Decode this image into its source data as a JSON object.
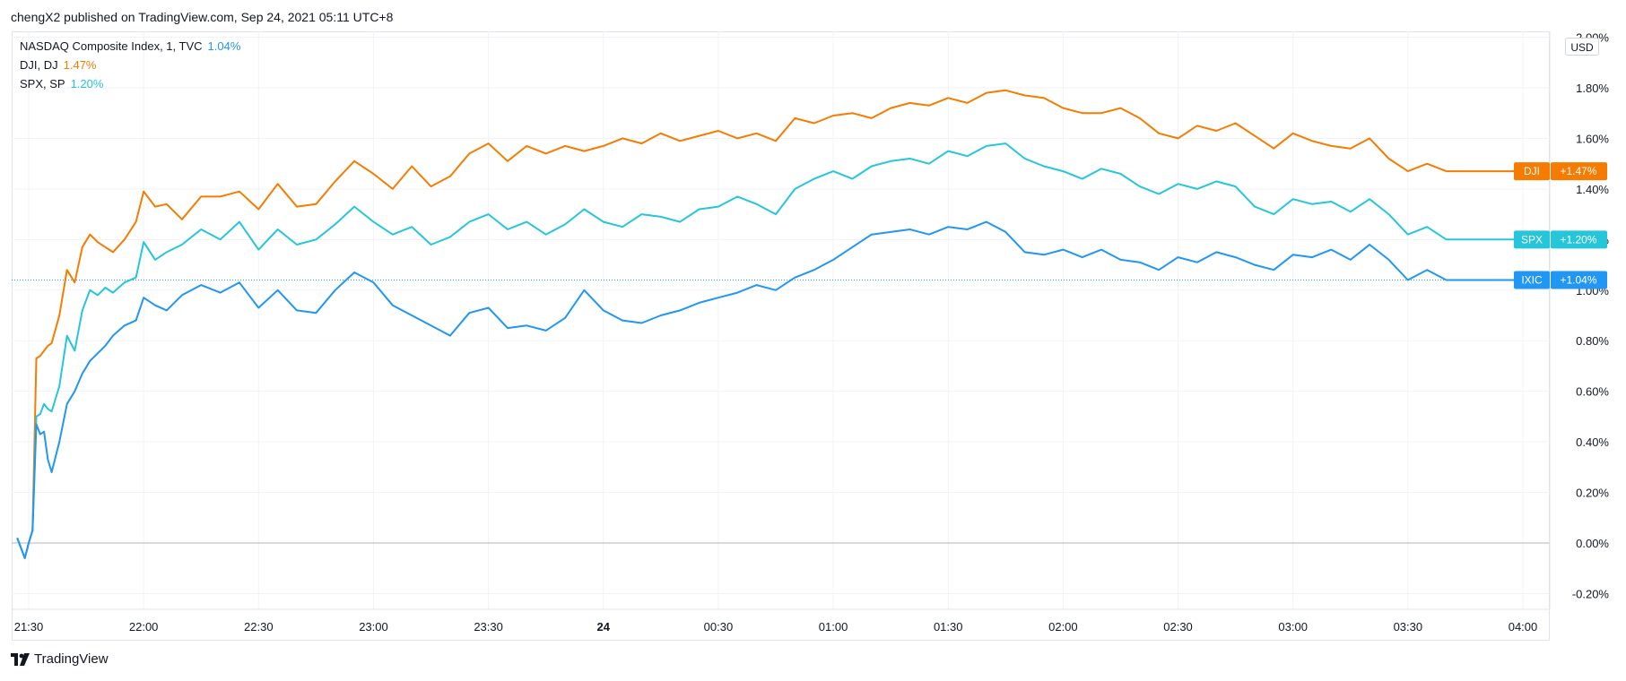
{
  "header": {
    "attribution": "chengX2 published on TradingView.com, Sep 24, 2021 05:11 UTC+8"
  },
  "legend": [
    {
      "name": "NASDAQ Composite Index, 1, TVC",
      "value": "1.04%",
      "color": "#2196f3"
    },
    {
      "name": "DJI, DJ",
      "value": "1.47%",
      "color": "#f57c00"
    },
    {
      "name": "SPX, SP",
      "value": "1.20%",
      "color": "#26c6da"
    }
  ],
  "currency_label": "USD",
  "footer": {
    "brand": "TradingView"
  },
  "chart_data": {
    "type": "line",
    "x_ticks": [
      "21:30",
      "22:00",
      "22:30",
      "23:00",
      "23:30",
      "24",
      "00:30",
      "01:00",
      "01:30",
      "02:00",
      "02:30",
      "03:00",
      "03:30",
      "04:00"
    ],
    "x_ticks_bold": [
      "24"
    ],
    "y_ticks": [
      "2.00%",
      "1.80%",
      "1.60%",
      "1.40%",
      "1.20%",
      "1.00%",
      "0.80%",
      "0.60%",
      "0.40%",
      "0.20%",
      "0.00%",
      "-0.20%"
    ],
    "y_tick_values": [
      2.0,
      1.8,
      1.6,
      1.4,
      1.2,
      1.0,
      0.8,
      0.6,
      0.4,
      0.2,
      0.0,
      -0.2
    ],
    "ylim": [
      -0.25,
      2.0
    ],
    "x_range_minutes": [
      -4,
      390
    ],
    "grid": true,
    "zero_line": 0.0,
    "series": [
      {
        "name": "DJI",
        "color": "#f57c00",
        "tag_value": "+1.47%",
        "last": 1.47,
        "x": [
          -3,
          -1,
          0,
          1,
          2,
          3,
          4,
          5,
          6,
          8,
          10,
          12,
          14,
          16,
          18,
          20,
          22,
          25,
          28,
          30,
          33,
          36,
          40,
          45,
          50,
          55,
          60,
          65,
          70,
          75,
          80,
          85,
          90,
          95,
          100,
          105,
          110,
          115,
          120,
          125,
          130,
          135,
          140,
          145,
          150,
          155,
          160,
          165,
          170,
          175,
          180,
          185,
          190,
          195,
          200,
          205,
          210,
          215,
          220,
          225,
          230,
          235,
          240,
          245,
          250,
          255,
          260,
          265,
          270,
          275,
          280,
          285,
          290,
          295,
          300,
          305,
          310,
          315,
          320,
          325,
          330,
          335,
          340,
          345,
          350,
          355,
          360,
          365,
          370,
          375,
          380,
          385,
          388,
          390
        ],
        "y": [
          0.02,
          -0.06,
          0.0,
          0.05,
          0.73,
          0.74,
          0.76,
          0.78,
          0.79,
          0.9,
          1.08,
          1.03,
          1.17,
          1.22,
          1.19,
          1.17,
          1.15,
          1.2,
          1.27,
          1.39,
          1.33,
          1.34,
          1.28,
          1.37,
          1.37,
          1.39,
          1.32,
          1.42,
          1.33,
          1.34,
          1.43,
          1.51,
          1.46,
          1.4,
          1.49,
          1.41,
          1.45,
          1.54,
          1.58,
          1.51,
          1.57,
          1.54,
          1.57,
          1.55,
          1.57,
          1.6,
          1.58,
          1.62,
          1.59,
          1.61,
          1.63,
          1.6,
          1.62,
          1.59,
          1.68,
          1.66,
          1.69,
          1.7,
          1.68,
          1.72,
          1.74,
          1.73,
          1.76,
          1.74,
          1.78,
          1.79,
          1.77,
          1.76,
          1.72,
          1.7,
          1.7,
          1.72,
          1.68,
          1.62,
          1.6,
          1.65,
          1.63,
          1.66,
          1.61,
          1.56,
          1.62,
          1.59,
          1.57,
          1.56,
          1.6,
          1.52,
          1.47,
          1.5,
          1.47,
          1.47,
          1.47,
          1.47,
          1.47,
          1.47
        ]
      },
      {
        "name": "SPX",
        "color": "#26c6da",
        "tag_value": "+1.20%",
        "last": 1.2,
        "x": [
          -3,
          -1,
          0,
          1,
          2,
          3,
          4,
          5,
          6,
          8,
          10,
          12,
          14,
          16,
          18,
          20,
          22,
          25,
          28,
          30,
          33,
          36,
          40,
          45,
          50,
          55,
          60,
          65,
          70,
          75,
          80,
          85,
          90,
          95,
          100,
          105,
          110,
          115,
          120,
          125,
          130,
          135,
          140,
          145,
          150,
          155,
          160,
          165,
          170,
          175,
          180,
          185,
          190,
          195,
          200,
          205,
          210,
          215,
          220,
          225,
          230,
          235,
          240,
          245,
          250,
          255,
          260,
          265,
          270,
          275,
          280,
          285,
          290,
          295,
          300,
          305,
          310,
          315,
          320,
          325,
          330,
          335,
          340,
          345,
          350,
          355,
          360,
          365,
          370,
          375,
          380,
          385,
          388,
          390
        ],
        "y": [
          0.02,
          -0.06,
          0.0,
          0.05,
          0.5,
          0.51,
          0.55,
          0.53,
          0.52,
          0.62,
          0.82,
          0.76,
          0.92,
          1.0,
          0.98,
          1.01,
          0.99,
          1.03,
          1.05,
          1.19,
          1.12,
          1.15,
          1.18,
          1.24,
          1.2,
          1.27,
          1.16,
          1.24,
          1.18,
          1.2,
          1.26,
          1.33,
          1.27,
          1.22,
          1.25,
          1.18,
          1.21,
          1.27,
          1.3,
          1.24,
          1.27,
          1.22,
          1.26,
          1.32,
          1.27,
          1.25,
          1.3,
          1.29,
          1.27,
          1.32,
          1.33,
          1.37,
          1.34,
          1.3,
          1.4,
          1.44,
          1.47,
          1.44,
          1.49,
          1.51,
          1.52,
          1.5,
          1.55,
          1.53,
          1.57,
          1.58,
          1.52,
          1.49,
          1.47,
          1.44,
          1.48,
          1.46,
          1.41,
          1.38,
          1.42,
          1.4,
          1.43,
          1.41,
          1.33,
          1.3,
          1.36,
          1.34,
          1.35,
          1.31,
          1.36,
          1.3,
          1.22,
          1.25,
          1.2,
          1.2,
          1.2,
          1.2,
          1.2,
          1.2
        ]
      },
      {
        "name": "IXIC",
        "color": "#2196f3",
        "tag_value": "+1.04%",
        "last": 1.04,
        "x": [
          -3,
          -1,
          0,
          1,
          2,
          3,
          4,
          5,
          6,
          8,
          10,
          12,
          14,
          16,
          18,
          20,
          22,
          25,
          28,
          30,
          33,
          36,
          40,
          45,
          50,
          55,
          60,
          65,
          70,
          75,
          80,
          85,
          90,
          95,
          100,
          105,
          110,
          115,
          120,
          125,
          130,
          135,
          140,
          145,
          150,
          155,
          160,
          165,
          170,
          175,
          180,
          185,
          190,
          195,
          200,
          205,
          210,
          215,
          220,
          225,
          230,
          235,
          240,
          245,
          250,
          255,
          260,
          265,
          270,
          275,
          280,
          285,
          290,
          295,
          300,
          305,
          310,
          315,
          320,
          325,
          330,
          335,
          340,
          345,
          350,
          355,
          360,
          365,
          370,
          375,
          380,
          385,
          388,
          390
        ],
        "y": [
          0.02,
          -0.06,
          0.0,
          0.05,
          0.47,
          0.43,
          0.44,
          0.33,
          0.28,
          0.4,
          0.55,
          0.6,
          0.67,
          0.72,
          0.75,
          0.78,
          0.82,
          0.86,
          0.88,
          0.97,
          0.94,
          0.92,
          0.98,
          1.02,
          0.99,
          1.03,
          0.93,
          1.0,
          0.92,
          0.91,
          1.0,
          1.07,
          1.03,
          0.94,
          0.9,
          0.86,
          0.82,
          0.91,
          0.93,
          0.85,
          0.86,
          0.84,
          0.89,
          1.0,
          0.92,
          0.88,
          0.87,
          0.9,
          0.92,
          0.95,
          0.97,
          0.99,
          1.02,
          1.0,
          1.05,
          1.08,
          1.12,
          1.17,
          1.22,
          1.23,
          1.24,
          1.22,
          1.25,
          1.24,
          1.27,
          1.23,
          1.15,
          1.14,
          1.16,
          1.13,
          1.16,
          1.12,
          1.11,
          1.08,
          1.13,
          1.11,
          1.15,
          1.13,
          1.1,
          1.08,
          1.14,
          1.13,
          1.16,
          1.12,
          1.18,
          1.12,
          1.04,
          1.08,
          1.04,
          1.04,
          1.04,
          1.04,
          1.04,
          1.04
        ]
      }
    ]
  }
}
